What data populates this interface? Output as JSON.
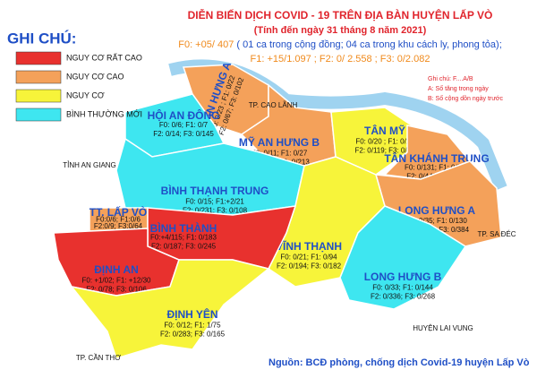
{
  "header": {
    "title": "DIỄN BIẾN DỊCH COVID - 19 TRÊN ĐỊA BÀN HUYỆN LẤP VÒ",
    "date": "(Tính đến ngày 31 tháng 8 năm 2021)",
    "f0": "F0: +05/ 407",
    "f0_detail": "( 01 ca trong cộng đồng; 04 ca trong khu cách ly, phong tỏa);",
    "others": "F1: +15/1.097 ;  F2: 0/ 2.558 ;  F3: 0/2.082"
  },
  "legend": {
    "title": "GHI CHÚ:",
    "items": [
      {
        "label": "NGUY CƠ RẤT CAO",
        "color": "#e8312e"
      },
      {
        "label": "NGUY CƠ CAO",
        "color": "#f4a15a"
      },
      {
        "label": "NGUY CƠ",
        "color": "#f7f43a"
      },
      {
        "label": "BÌNH THƯỜNG MỚI",
        "color": "#3ee6f0"
      }
    ]
  },
  "note": {
    "title": "Ghi chú: F....A/B",
    "a": "A: Số tăng trong ngày",
    "b": "B: Số cộng dồn ngày trước"
  },
  "regions": [
    {
      "name": "MỸ AN HƯNG A",
      "color": "#f4a15a",
      "stats": [
        "F0: 0/23 ; F1: 0/22",
        "F2: 0/67; F3: 0/102"
      ]
    },
    {
      "name": "HỘI AN ĐÔNG",
      "color": "#3ee6f0",
      "stats": [
        "F0: 0/6; F1: 0/7",
        "F2: 0/14; F3: 0/145"
      ]
    },
    {
      "name": "MỸ AN HƯNG B",
      "color": "#f4a15a",
      "stats": [
        "F0: 0/11; F1: 0/27",
        "F2: 0/90; F3: 0/213"
      ]
    },
    {
      "name": "TÂN MỸ",
      "color": "#f7f43a",
      "stats": [
        "F0: 0/20 ; F1: 0/25",
        "F2: 0/119; F3: 0/90"
      ]
    },
    {
      "name": "TÂN KHÁNH TRUNG",
      "color": "#f4a15a",
      "stats": [
        "F0: 0/131; F1: 0/298",
        "F2: 0/442; F3: 0/20"
      ]
    },
    {
      "name": "BÌNH THẠNH TRUNG",
      "color": "#3ee6f0",
      "stats": [
        "F0: 0/15; F1:+2/21",
        "F2: 0/231; F3: 0/108"
      ]
    },
    {
      "name": "LONG HƯNG A",
      "color": "#f4a15a",
      "stats": [
        "F0: 0/35; F1: 0/130",
        "F2: 0/399; F3: 0/384"
      ]
    },
    {
      "name": "VĨNH THẠNH",
      "color": "#f7f43a",
      "stats": [
        "F0: 0/21; F1: 0/94",
        "F2: 0/194; F3: 0/182"
      ]
    },
    {
      "name": "TT. LẤP VÒ",
      "color": "#f4a15a",
      "stats": [
        "F0:0/6; F1:0/6",
        "F2:0/9; F3:0/64"
      ]
    },
    {
      "name": "BÌNH THÀNH",
      "color": "#e8312e",
      "stats": [
        "F0:+4/115; F1: 0/183",
        "F2: 0/187; F3: 0/245"
      ]
    },
    {
      "name": "ĐỊNH AN",
      "color": "#e8312e",
      "stats": [
        "F0: +1/02; F1: +12/30",
        "F2: 0/78; F3: 0/106"
      ]
    },
    {
      "name": "LONG HƯNG B",
      "color": "#3ee6f0",
      "stats": [
        "F0: 0/33; F1: 0/144",
        "F2: 0/336; F3: 0/268"
      ]
    },
    {
      "name": "ĐỊNH YÊN",
      "color": "#f7f43a",
      "stats": [
        "F0: 0/12; F1: 1/75",
        "F2: 0/283; F3: 0/165"
      ]
    }
  ],
  "surroundings": [
    "TP. CAO LÃNH",
    "TỈNH AN GIANG",
    "TP. SA ĐÉC",
    "HUYỆN LAI VUNG",
    "TP. CẦN THƠ"
  ],
  "source": "Nguồn: BCĐ phòng, chống dịch Covid-19 huyện Lấp Vò"
}
